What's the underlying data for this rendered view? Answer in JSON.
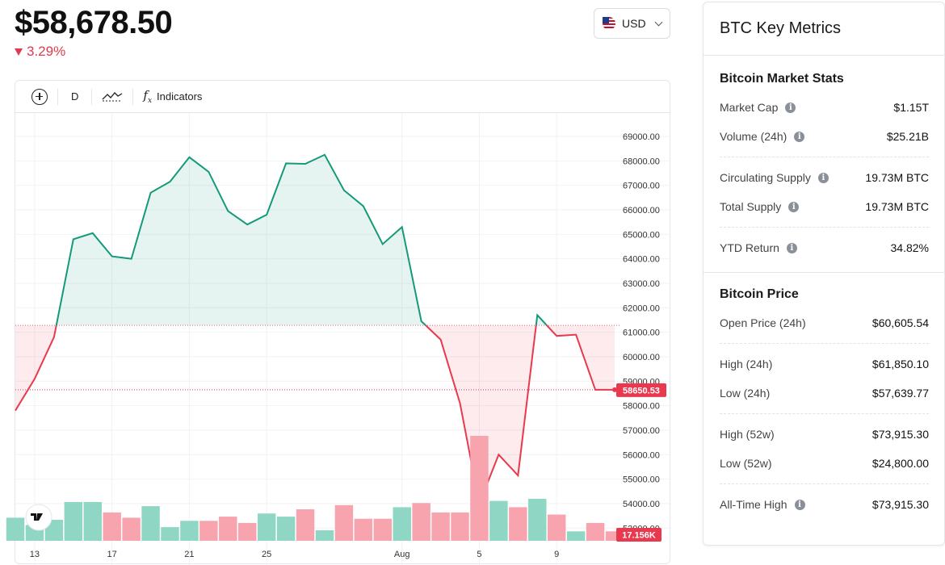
{
  "header": {
    "price": "$58,678.50",
    "change": "3.29%",
    "change_direction": "down",
    "currency": "USD",
    "currency_flag_icon": "us-flag-icon"
  },
  "toolbar": {
    "interval": "D",
    "indicators_label": "Indicators",
    "tools": [
      "add-circle-icon",
      "chart-style-icon",
      "function-fx-icon"
    ]
  },
  "chart_data": {
    "type": "area",
    "y_ticks": [
      "53000.00",
      "54000.00",
      "55000.00",
      "56000.00",
      "57000.00",
      "58000.00",
      "59000.00",
      "60000.00",
      "61000.00",
      "62000.00",
      "63000.00",
      "64000.00",
      "65000.00",
      "66000.00",
      "67000.00",
      "68000.00",
      "69000.00"
    ],
    "x_ticks": [
      "13",
      "17",
      "21",
      "25",
      "Aug",
      "5",
      "9"
    ],
    "x_tick_index": [
      1,
      5,
      9,
      13,
      20,
      24,
      28
    ],
    "price_series": [
      57800,
      59100,
      60800,
      64800,
      65050,
      64100,
      64000,
      66700,
      67150,
      68150,
      67550,
      65950,
      65400,
      65800,
      67900,
      67880,
      68250,
      66800,
      66150,
      64600,
      65300,
      61450,
      60700,
      58100,
      54000,
      56000,
      55150,
      61700,
      60850,
      60900,
      58650,
      58650
    ],
    "base_value": 61280,
    "last_price_label": "58650.53",
    "last_volume_label": "17.156K",
    "volume_series": [
      {
        "v": 0.22,
        "up": true
      },
      {
        "v": 0.15,
        "up": true
      },
      {
        "v": 0.2,
        "up": true
      },
      {
        "v": 0.37,
        "up": true
      },
      {
        "v": 0.37,
        "up": true
      },
      {
        "v": 0.27,
        "up": false
      },
      {
        "v": 0.22,
        "up": false
      },
      {
        "v": 0.33,
        "up": true
      },
      {
        "v": 0.13,
        "up": true
      },
      {
        "v": 0.19,
        "up": true
      },
      {
        "v": 0.19,
        "up": false
      },
      {
        "v": 0.23,
        "up": false
      },
      {
        "v": 0.17,
        "up": false
      },
      {
        "v": 0.26,
        "up": true
      },
      {
        "v": 0.23,
        "up": true
      },
      {
        "v": 0.3,
        "up": false
      },
      {
        "v": 0.1,
        "up": true
      },
      {
        "v": 0.34,
        "up": false
      },
      {
        "v": 0.21,
        "up": false
      },
      {
        "v": 0.21,
        "up": false
      },
      {
        "v": 0.32,
        "up": true
      },
      {
        "v": 0.36,
        "up": false
      },
      {
        "v": 0.27,
        "up": false
      },
      {
        "v": 0.27,
        "up": false
      },
      {
        "v": 1.0,
        "up": false
      },
      {
        "v": 0.38,
        "up": true
      },
      {
        "v": 0.32,
        "up": false
      },
      {
        "v": 0.4,
        "up": true
      },
      {
        "v": 0.25,
        "up": false
      },
      {
        "v": 0.09,
        "up": true
      },
      {
        "v": 0.17,
        "up": false
      },
      {
        "v": 0.09,
        "up": false
      }
    ],
    "colors": {
      "up": "#14997a",
      "down": "#e8394e",
      "up_volume": "#8fd6c5",
      "down_volume": "#f7a4ae"
    },
    "grid": true,
    "logo_icon": "tradingview-logo-icon"
  },
  "metrics": {
    "title": "BTC Key Metrics",
    "market_stats": {
      "title": "Bitcoin Market Stats",
      "groups": [
        [
          {
            "label": "Market Cap",
            "value": "$1.15T",
            "info": true
          },
          {
            "label": "Volume (24h)",
            "value": "$25.21B",
            "info": true
          }
        ],
        [
          {
            "label": "Circulating Supply",
            "value": "19.73M BTC",
            "info": true
          },
          {
            "label": "Total Supply",
            "value": "19.73M BTC",
            "info": true
          }
        ],
        [
          {
            "label": "YTD Return",
            "value": "34.82%",
            "info": true
          }
        ]
      ]
    },
    "price": {
      "title": "Bitcoin Price",
      "groups": [
        [
          {
            "label": "Open Price (24h)",
            "value": "$60,605.54",
            "info": false
          }
        ],
        [
          {
            "label": "High (24h)",
            "value": "$61,850.10",
            "info": false
          },
          {
            "label": "Low (24h)",
            "value": "$57,639.77",
            "info": false
          }
        ],
        [
          {
            "label": "High (52w)",
            "value": "$73,915.30",
            "info": false
          },
          {
            "label": "Low (52w)",
            "value": "$24,800.00",
            "info": false
          }
        ],
        [
          {
            "label": "All-Time High",
            "value": "$73,915.30",
            "info": true
          }
        ]
      ]
    }
  }
}
